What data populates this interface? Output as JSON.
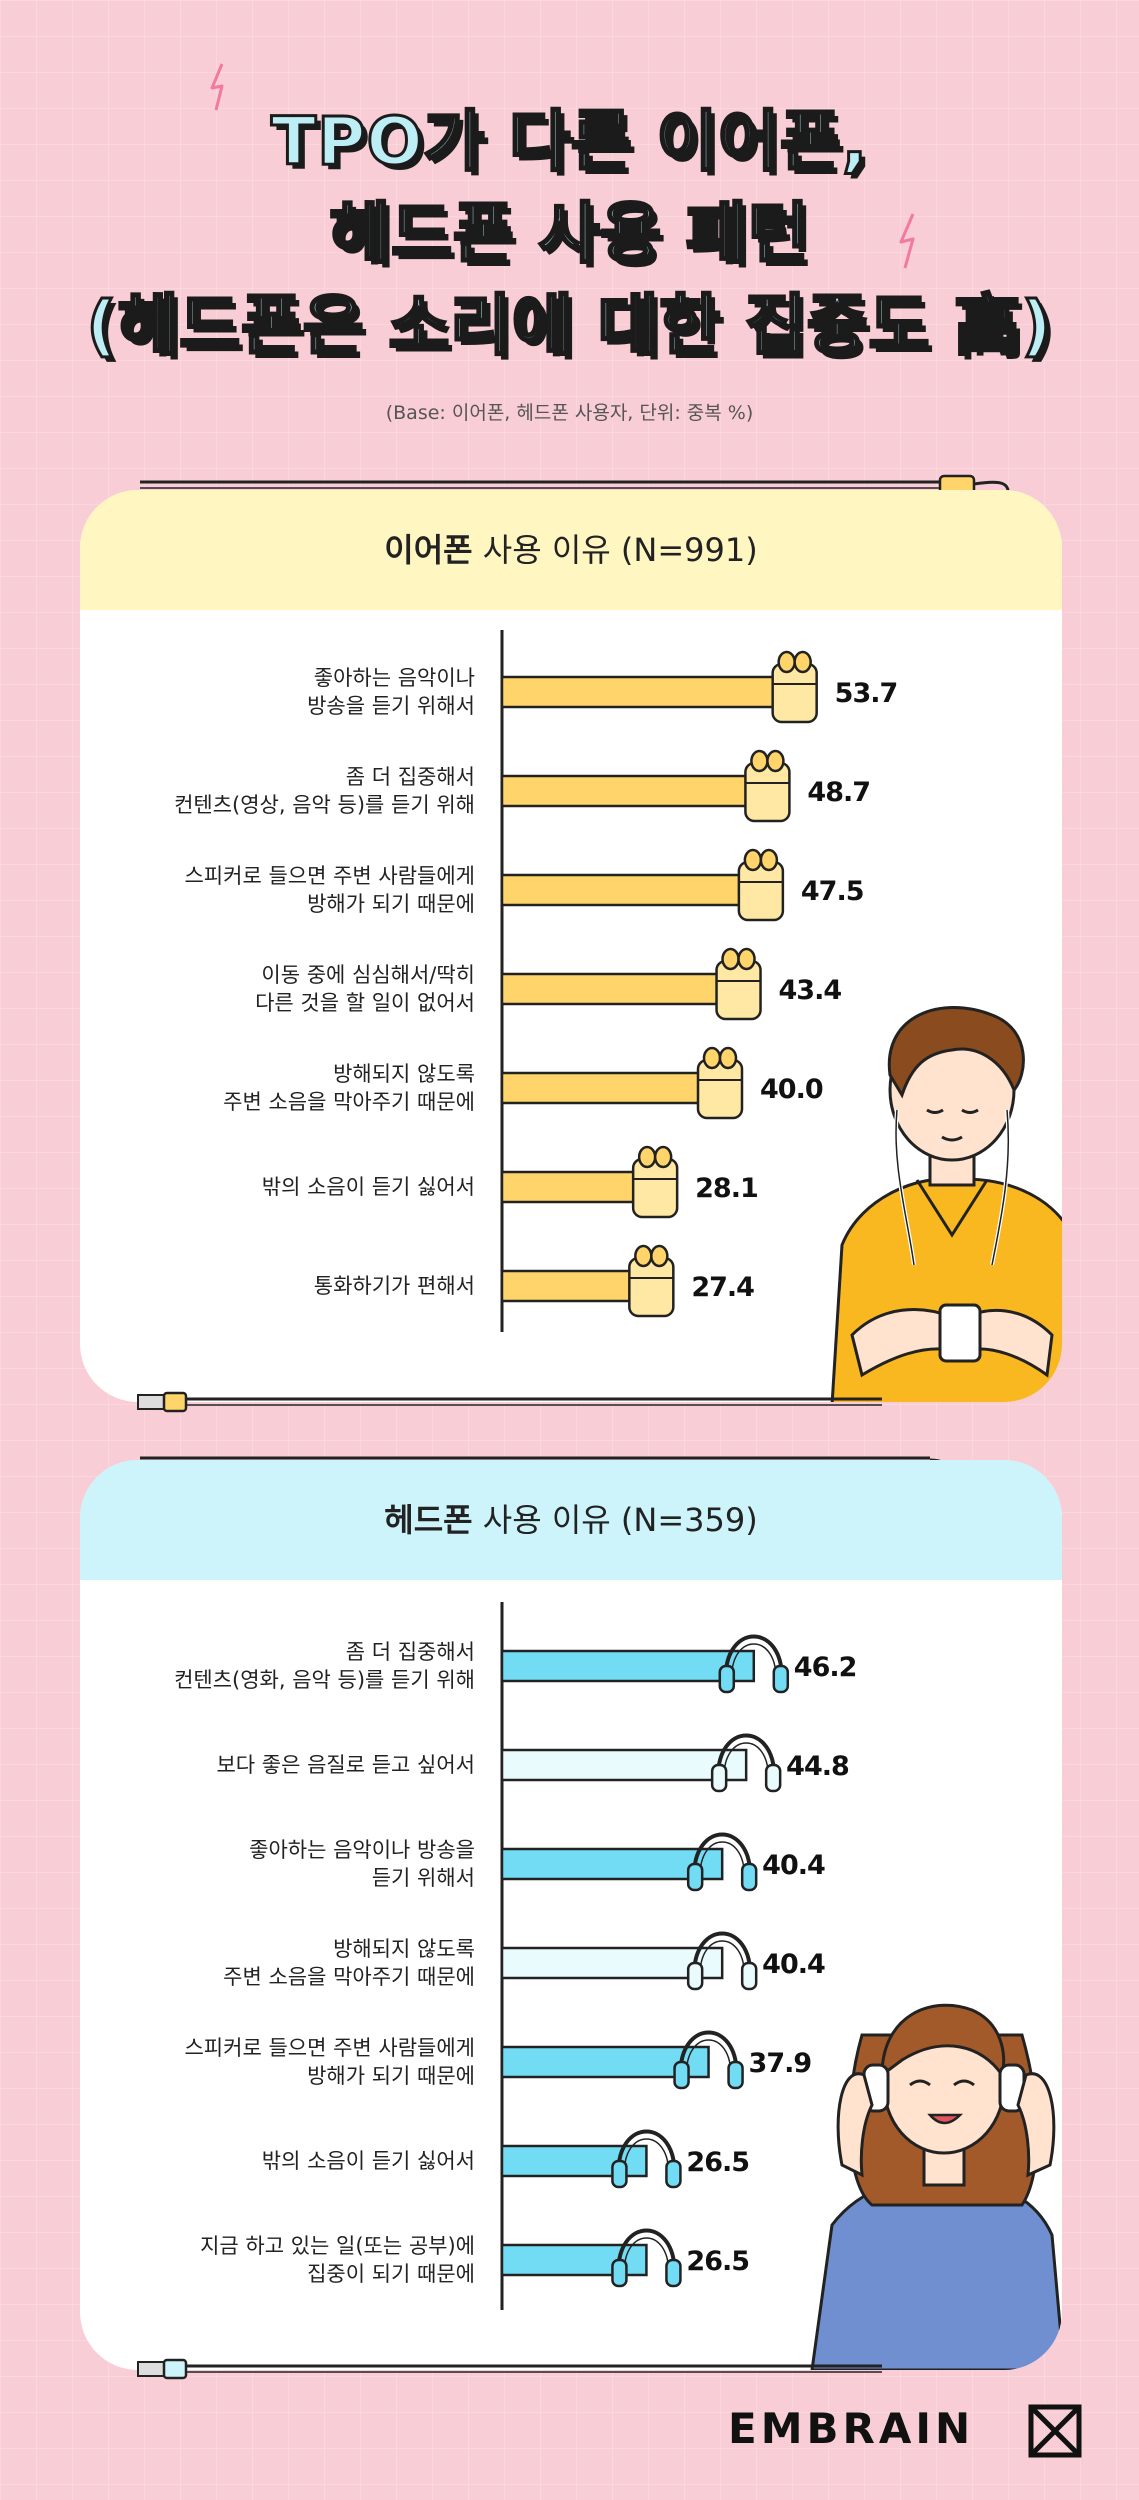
{
  "title": {
    "line1": "TPO가 다른 이어폰,",
    "line2": "헤드폰 사용 패턴",
    "line3": "(헤드폰은 소리에 대한 집중도 高)"
  },
  "base_note": "(Base: 이어폰, 헤드폰 사용자, 단위: 중복 %)",
  "colors": {
    "background": "#f9cdd6",
    "earphone_header": "#fff6c2",
    "earphone_bar": "#ffd56b",
    "headphone_header": "#cdf4fa",
    "headphone_bar_dark": "#72dcf5",
    "headphone_bar_light": "#e9fbfd"
  },
  "earphone_panel": {
    "title_bold": "이어폰",
    "title_rest": " 사용 이유 (N=991)"
  },
  "headphone_panel": {
    "title_bold": "헤드폰",
    "title_rest": " 사용 이유 (N=359)"
  },
  "brand": "EMBRAIN",
  "chart_data": [
    {
      "type": "bar",
      "orientation": "horizontal",
      "title": "이어폰 사용 이유 (N=991)",
      "unit": "%",
      "xlim": [
        0,
        60
      ],
      "categories": [
        [
          "좋아하는 음악이나",
          "방송을 듣기 위해서"
        ],
        [
          "좀 더 집중해서",
          "컨텐츠(영상, 음악 등)를 듣기 위해"
        ],
        [
          "스피커로 들으면 주변 사람들에게",
          "방해가 되기 때문에"
        ],
        [
          "이동 중에 심심해서/딱히",
          "다른 것을 할 일이 없어서"
        ],
        [
          "방해되지 않도록",
          "주변 소음을 막아주기 때문에"
        ],
        [
          "밖의 소음이 듣기 싫어서"
        ],
        [
          "통화하기가 편해서"
        ]
      ],
      "values": [
        53.7,
        48.7,
        47.5,
        43.4,
        40.0,
        28.1,
        27.4
      ],
      "value_labels": [
        "53.7",
        "48.7",
        "47.5",
        "43.4",
        "40.0",
        "28.1",
        "27.4"
      ]
    },
    {
      "type": "bar",
      "orientation": "horizontal",
      "title": "헤드폰 사용 이유 (N=359)",
      "unit": "%",
      "xlim": [
        0,
        60
      ],
      "categories": [
        [
          "좀 더 집중해서",
          "컨텐츠(영화, 음악 등)를 듣기 위해"
        ],
        [
          "보다 좋은 음질로 듣고 싶어서"
        ],
        [
          "좋아하는 음악이나 방송을",
          "듣기 위해서"
        ],
        [
          "방해되지 않도록",
          "주변 소음을 막아주기 때문에"
        ],
        [
          "스피커로 들으면 주변 사람들에게",
          "방해가 되기 때문에"
        ],
        [
          "밖의 소음이 듣기 싫어서"
        ],
        [
          "지금 하고 있는 일(또는 공부)에",
          "집중이 되기 때문에"
        ]
      ],
      "values": [
        46.2,
        44.8,
        40.4,
        40.4,
        37.9,
        26.5,
        26.5
      ],
      "value_labels": [
        "46.2",
        "44.8",
        "40.4",
        "40.4",
        "37.9",
        "26.5",
        "26.5"
      ],
      "bar_styles": [
        "dark",
        "light",
        "dark",
        "light",
        "dark",
        "dark",
        "dark"
      ]
    }
  ]
}
